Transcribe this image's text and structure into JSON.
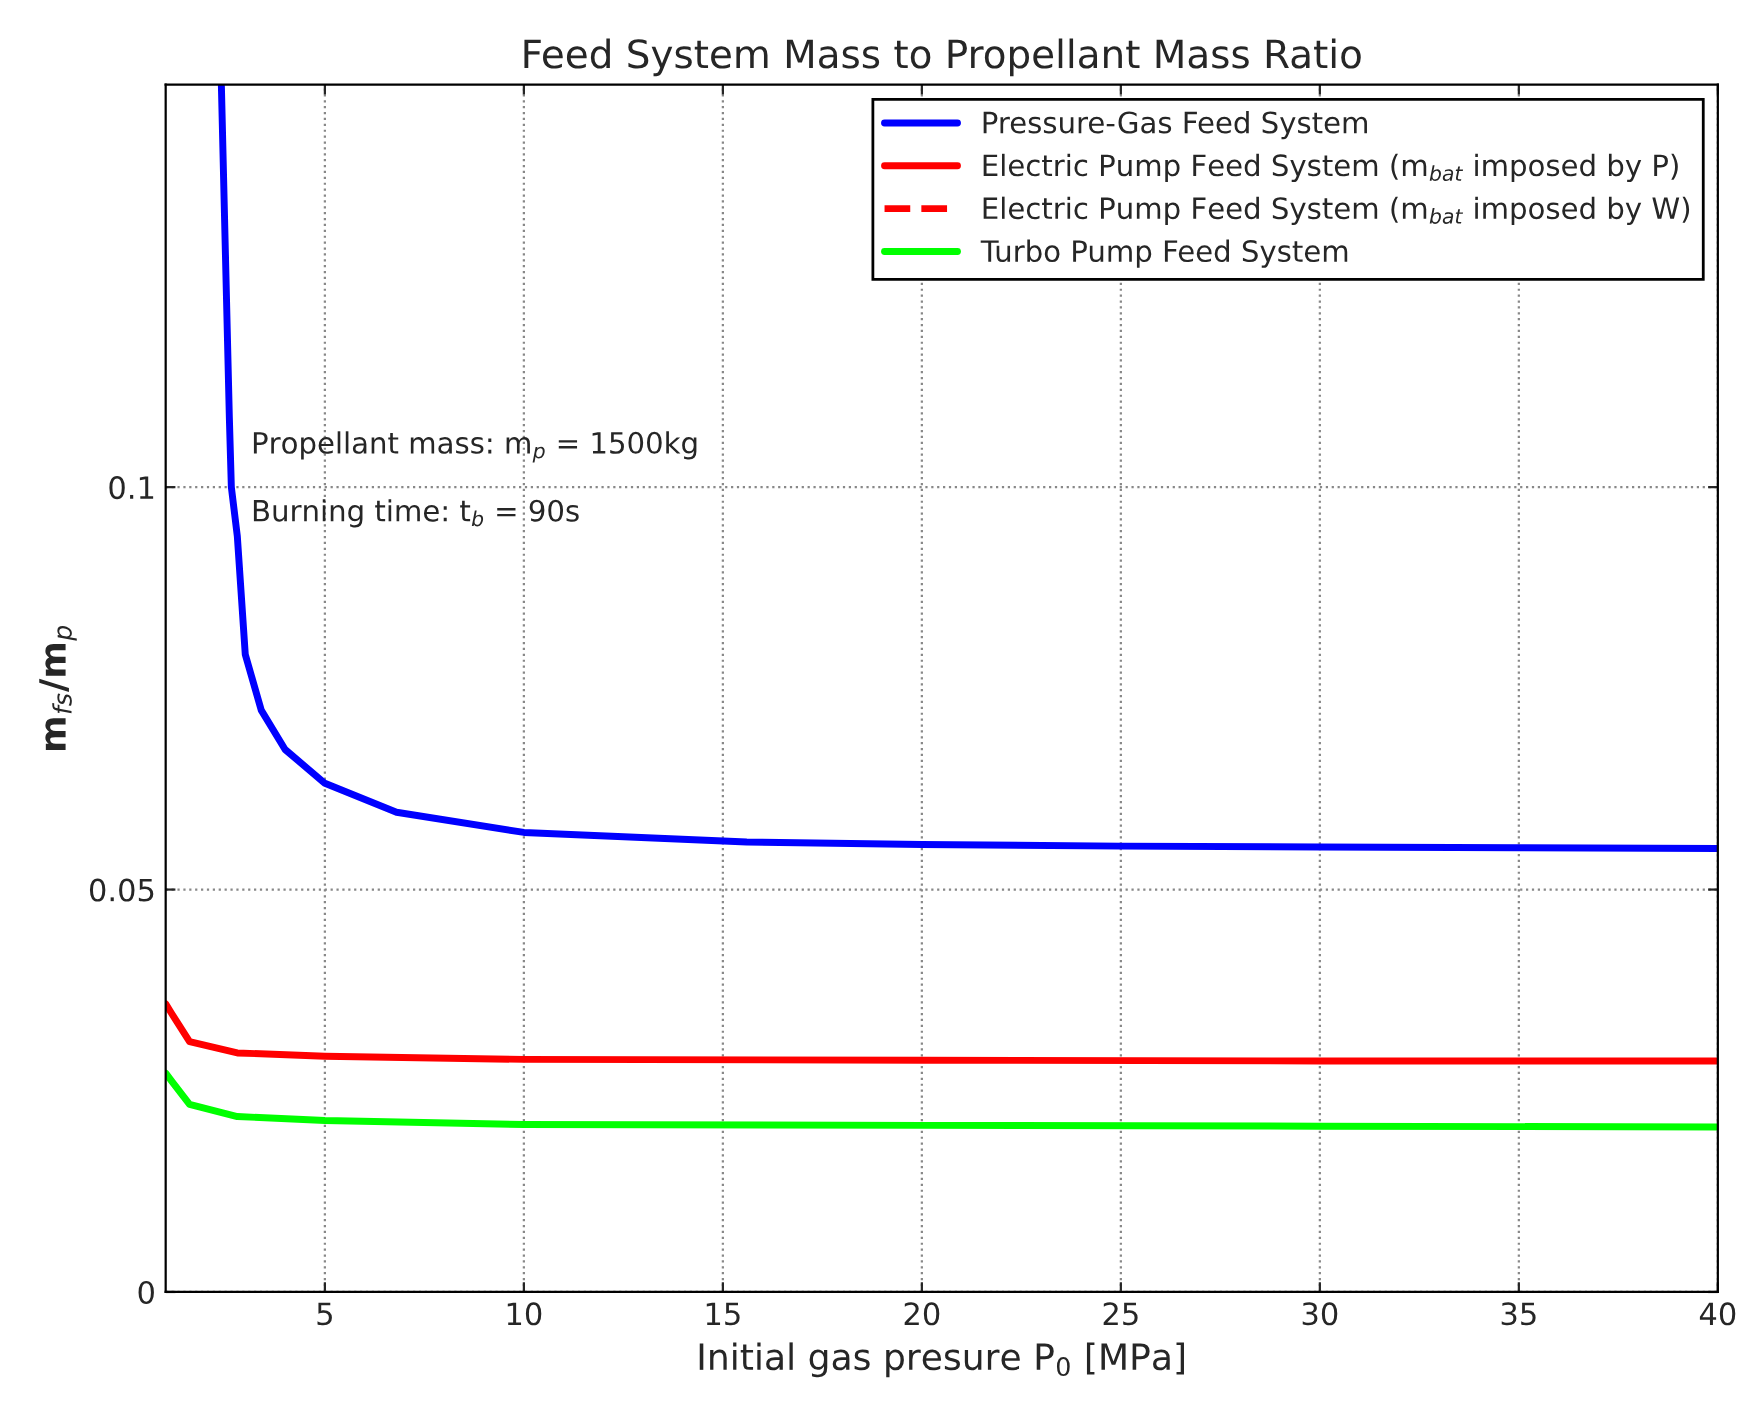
{
  "chart_data": {
    "type": "line",
    "title": "Feed System Mass to Propellant Mass Ratio",
    "xlabel": "Initial gas presure P$_{0}$ [MPa]",
    "ylabel": "m$_{fs}$/m$_{p}$",
    "xlim": [
      1,
      40
    ],
    "ylim": [
      0,
      0.15
    ],
    "xticks": [
      5,
      10,
      15,
      20,
      25,
      30,
      35,
      40
    ],
    "yticks": [
      0,
      0.05,
      0.1
    ],
    "grid": true,
    "legend": "top right",
    "annotations": [
      {
        "text": "Propellant mass: m$_{p}$ = 1500kg"
      },
      {
        "text": "Burning time: t$_{b}$ = 90s"
      }
    ],
    "series": [
      {
        "name": "Pressure-Gas Feed System",
        "color": "#0000ff",
        "line_style": "solid",
        "x": [
          2.4,
          2.6,
          2.65,
          2.8,
          3.0,
          3.4,
          4.0,
          5.0,
          6.8,
          10,
          15.6,
          20,
          25,
          30,
          35,
          40
        ],
        "values": [
          0.1498,
          0.1086,
          0.1,
          0.0939,
          0.0792,
          0.0723,
          0.0674,
          0.0632,
          0.0596,
          0.0571,
          0.0559,
          0.0556,
          0.0554,
          0.0553,
          0.0552,
          0.0551
        ]
      },
      {
        "name": "Electric Pump Feed System (m$_{bat}$ imposed by P)",
        "color": "#ff0000",
        "line_style": "solid",
        "x": [
          1.0,
          1.15,
          1.6,
          2.8,
          5,
          10,
          20,
          30,
          40
        ],
        "values": [
          0.0358,
          0.0346,
          0.0311,
          0.0297,
          0.0293,
          0.0289,
          0.0288,
          0.0287,
          0.0287
        ]
      },
      {
        "name": "Electric Pump Feed System (m$_{bat}$ imposed by W)",
        "color": "#ff0000",
        "line_style": "dashed"
      },
      {
        "name": "Turbo Pump Feed System",
        "color": "#00ff00",
        "line_style": "solid",
        "x": [
          1.0,
          1.15,
          1.6,
          2.8,
          5,
          10,
          20,
          30,
          40
        ],
        "values": [
          0.0272,
          0.0262,
          0.0233,
          0.0218,
          0.0213,
          0.0208,
          0.0207,
          0.0206,
          0.0205
        ]
      }
    ]
  }
}
